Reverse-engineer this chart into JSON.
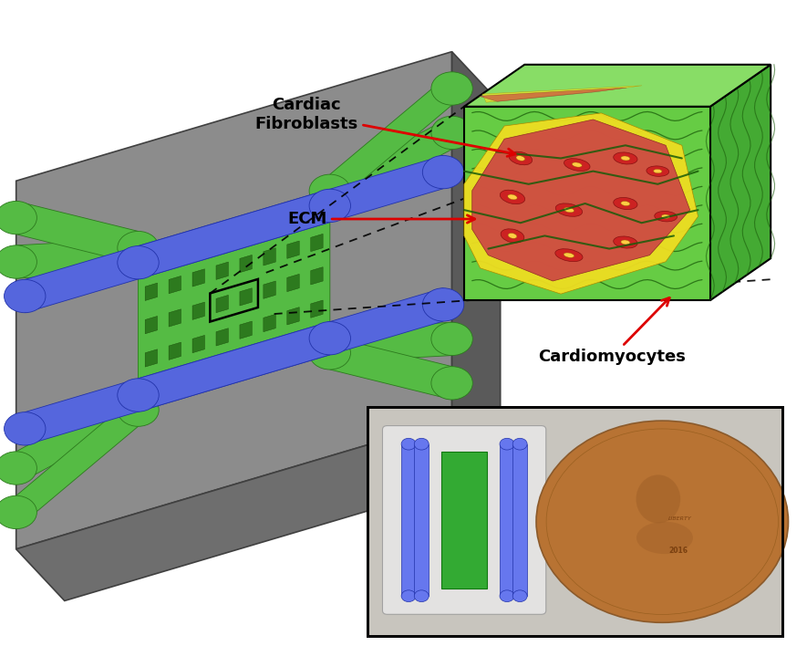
{
  "bg_color": "#ffffff",
  "fig_width": 8.85,
  "fig_height": 7.08,
  "dpi": 100,
  "labels": {
    "cardiac_fibroblasts": "Cardiac\nFibroblasts",
    "ecm": "ECM",
    "cardiomyocytes": "Cardiomyocytes"
  },
  "label_fontsize": 13,
  "label_fontweight": "bold",
  "colors": {
    "chip_top": "#8c8c8c",
    "chip_right": "#5a5a5a",
    "chip_bottom": "#6e6e6e",
    "chip_edge": "#404040",
    "green_channel": "#55bb44",
    "green_dark": "#2d7a1e",
    "blue_channel": "#5566dd",
    "blue_dark": "#2233aa",
    "ecm_green": "#66cc44",
    "ecm_green_top": "#88dd66",
    "ecm_green_right": "#44aa33",
    "fibroblast_red": "#cc4444",
    "cardiomyocyte_yellow": "#eedd22",
    "cell_red": "#cc2222",
    "cell_nucleus": "#ffcc44",
    "fiber_green": "#1a5c0a",
    "arrow_red": "#dd0000",
    "penny_color": "#b87333",
    "penny_dark": "#8b5a2b"
  }
}
